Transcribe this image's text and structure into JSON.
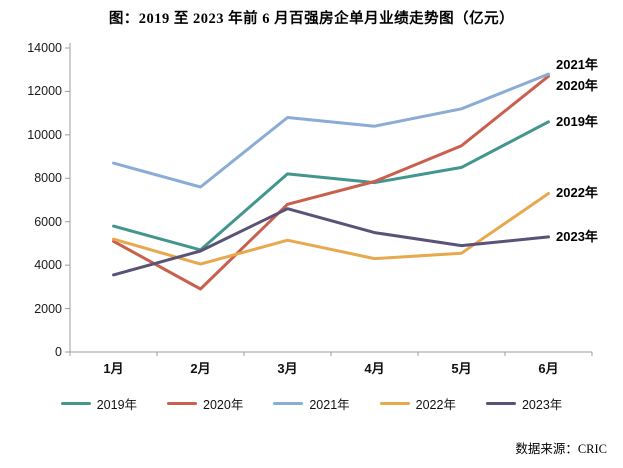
{
  "page": {
    "source": "数据来源：CRIC"
  },
  "chart_data": {
    "type": "line",
    "title": "图：2019 至 2023 年前 6 月百强房企单月业绩走势图（亿元）",
    "categories": [
      "1月",
      "2月",
      "3月",
      "4月",
      "5月",
      "6月"
    ],
    "series": [
      {
        "name": "2019年",
        "color": "#42968E",
        "values": [
          5800,
          4700,
          8200,
          7800,
          8500,
          10600
        ]
      },
      {
        "name": "2020年",
        "color": "#C9604E",
        "values": [
          5100,
          2900,
          6800,
          7850,
          9500,
          12700
        ]
      },
      {
        "name": "2021年",
        "color": "#8AACD5",
        "values": [
          8700,
          7600,
          10800,
          10400,
          11200,
          12800
        ]
      },
      {
        "name": "2022年",
        "color": "#E8A84D",
        "values": [
          5200,
          4050,
          5150,
          4300,
          4550,
          7300
        ]
      },
      {
        "name": "2023年",
        "color": "#5B5377",
        "values": [
          3550,
          4650,
          6600,
          5500,
          4900,
          5300
        ]
      }
    ],
    "ylim": [
      0,
      14000
    ],
    "ytick_step": 2000,
    "ytick_labels": [
      "0",
      "2000",
      "4000",
      "6000",
      "8000",
      "10000",
      "12000",
      "14000"
    ],
    "grid": false,
    "legend_position": "bottom",
    "legend_labels": [
      "2019年",
      "2020年",
      "2021年",
      "2022年",
      "2023年"
    ],
    "end_labels_top_to_bottom": [
      "2021年",
      "2020年",
      "2019年",
      "2022年",
      "2023年"
    ],
    "axis_color": "#9d9d9d",
    "line_width": 3
  }
}
